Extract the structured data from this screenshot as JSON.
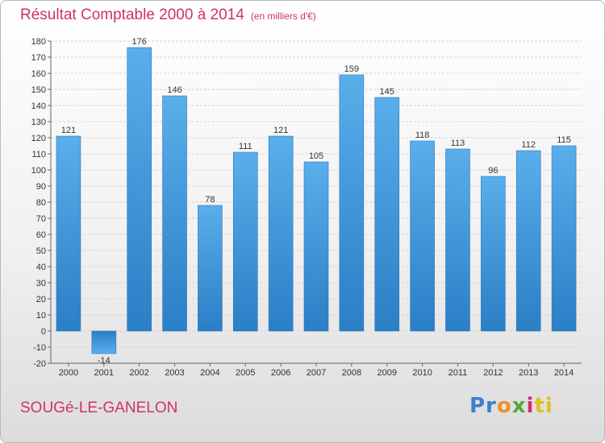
{
  "chart_data": {
    "type": "bar",
    "title": "Résultat Comptable 2000 à 2014",
    "subtitle": "(en milliers d'€)",
    "xlabel": "",
    "ylabel": "",
    "categories": [
      "2000",
      "2001",
      "2002",
      "2003",
      "2004",
      "2005",
      "2006",
      "2007",
      "2008",
      "2009",
      "2010",
      "2011",
      "2012",
      "2013",
      "2014"
    ],
    "values": [
      121,
      -14,
      176,
      146,
      78,
      111,
      121,
      105,
      159,
      145,
      118,
      113,
      96,
      112,
      115
    ],
    "ylim": [
      -20,
      180
    ],
    "yticks": [
      -20,
      -10,
      0,
      10,
      20,
      30,
      40,
      50,
      60,
      70,
      80,
      90,
      100,
      110,
      120,
      130,
      140,
      150,
      160,
      170,
      180
    ],
    "grid": true,
    "bar_color": "#3f97dc"
  },
  "footer": {
    "commune": "SOUGé-LE-GANELON",
    "logo_parts": [
      "Pr",
      "o",
      "x",
      "i",
      "ti"
    ]
  }
}
